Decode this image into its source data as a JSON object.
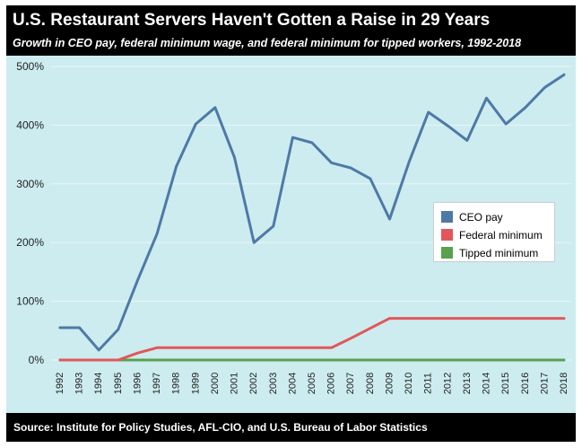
{
  "header": {
    "title": "U.S. Restaurant Servers Haven't Gotten a Raise in 29 Years",
    "subtitle": "Growth in CEO pay, federal minimum wage, and federal minimum for tipped workers, 1992-2018"
  },
  "footer": {
    "source": "Source: Institute for Policy Studies, AFL-CIO, and U.S. Bureau of Labor Statistics"
  },
  "colors": {
    "background": "#cdecef",
    "ceo": "#4e79a7",
    "federal": "#e15759",
    "tipped": "#59a14f",
    "banner": "#000000"
  },
  "legend": {
    "placement": "right-center",
    "items": [
      {
        "label": "CEO pay",
        "color": "#4e79a7"
      },
      {
        "label": "Federal minimum",
        "color": "#e15759"
      },
      {
        "label": "Tipped minimum",
        "color": "#59a14f"
      }
    ]
  },
  "chart_data": {
    "type": "line",
    "title": "U.S. Restaurant Servers Haven't Gotten a Raise in 29 Years",
    "subtitle": "Growth in CEO pay, federal minimum wage, and federal minimum for tipped workers, 1992-2018",
    "xlabel": "",
    "ylabel": "",
    "categories": [
      "1992",
      "1993",
      "1994",
      "1995",
      "1996",
      "1997",
      "1998",
      "1999",
      "2000",
      "2001",
      "2002",
      "2003",
      "2004",
      "2005",
      "2006",
      "2007",
      "2008",
      "2009",
      "2010",
      "2011",
      "2012",
      "2013",
      "2014",
      "2015",
      "2016",
      "2017",
      "2018"
    ],
    "ylim": [
      0,
      500
    ],
    "yticks": [
      0,
      100,
      200,
      300,
      400,
      500
    ],
    "ytick_labels": [
      "0%",
      "100%",
      "200%",
      "300%",
      "400%",
      "500%"
    ],
    "grid": true,
    "series": [
      {
        "name": "CEO pay",
        "color": "#4e79a7",
        "values": [
          55,
          55,
          17,
          52,
          136,
          215,
          330,
          402,
          430,
          345,
          200,
          228,
          379,
          370,
          336,
          327,
          309,
          240,
          337,
          422,
          399,
          374,
          446,
          402,
          430,
          464,
          486
        ]
      },
      {
        "name": "Federal minimum",
        "color": "#e15759",
        "values": [
          0,
          0,
          0,
          0,
          12,
          21,
          21,
          21,
          21,
          21,
          21,
          21,
          21,
          21,
          21,
          37,
          54,
          71,
          71,
          71,
          71,
          71,
          71,
          71,
          71,
          71,
          71
        ]
      },
      {
        "name": "Tipped minimum",
        "color": "#59a14f",
        "values": [
          0,
          0,
          0,
          0,
          0,
          0,
          0,
          0,
          0,
          0,
          0,
          0,
          0,
          0,
          0,
          0,
          0,
          0,
          0,
          0,
          0,
          0,
          0,
          0,
          0,
          0,
          0
        ]
      }
    ]
  }
}
